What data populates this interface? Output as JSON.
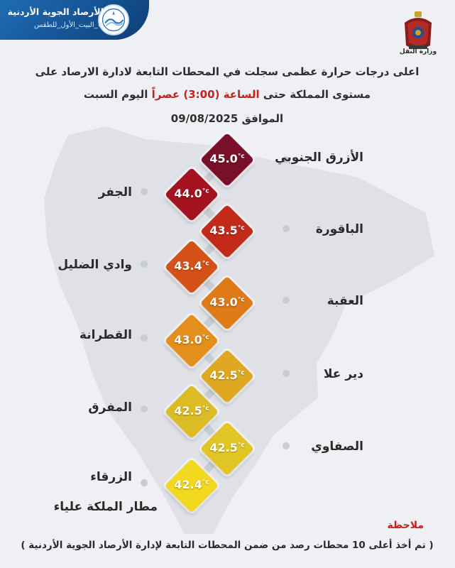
{
  "header": {
    "org_name": "الأرصاد الجوية الأردنية",
    "hashtag": "#_البيت_الأول_للطقس",
    "ministry": "وزارة النقل"
  },
  "title": {
    "line1": "اعلى درجات حرارة عظمى سجلت في المحطات التابعة لادارة الارصاد على",
    "line2_pre": "مستوى المملكة حتى ",
    "line2_highlight": "الساعة (3:00) عصراً",
    "line2_post": " اليوم السبت",
    "date_line": "الموافق 09/08/2025"
  },
  "stations": [
    {
      "name": "الأزرق الجنوبي",
      "temp": "45.0",
      "unit": "°c",
      "color": "#7a0f2a"
    },
    {
      "name": "الجفر",
      "temp": "44.0",
      "unit": "°c",
      "color": "#a5121f"
    },
    {
      "name": "الباقورة",
      "temp": "43.5",
      "unit": "°c",
      "color": "#c22a1a"
    },
    {
      "name": "وادي الضليل",
      "temp": "43.4",
      "unit": "°c",
      "color": "#d4521a"
    },
    {
      "name": "العقبة",
      "temp": "43.0",
      "unit": "°c",
      "color": "#df7a18"
    },
    {
      "name": "القطرانة",
      "temp": "43.0",
      "unit": "°c",
      "color": "#e48f1c"
    },
    {
      "name": "دير علا",
      "temp": "42.5",
      "unit": "°c",
      "color": "#dea920"
    },
    {
      "name": "المفرق",
      "temp": "42.5",
      "unit": "°c",
      "color": "#dcbc24"
    },
    {
      "name": "الصفاوي",
      "temp": "42.5",
      "unit": "°c",
      "color": "#e2c626"
    },
    {
      "name": "الزرقاء",
      "name2": "مطار الملكة علياء",
      "temp": "42.4",
      "unit": "°c",
      "color": "#f2d81e"
    }
  ],
  "note": {
    "heading": "ملاحظة",
    "text": "( تم أخذ أعلى 10 محطات رصد من ضمن المحطات التابعة لإدارة الأرصاد الجوية الأردنية )"
  },
  "colors": {
    "banner": "#1f6cb4",
    "highlight": "#c8201e",
    "background": "#eef0f3"
  },
  "icons": [
    "jmd-logo-icon",
    "royal-crest-icon"
  ]
}
